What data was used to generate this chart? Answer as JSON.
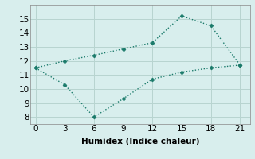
{
  "line1_x": [
    0,
    3,
    6,
    9,
    12,
    15,
    18,
    21
  ],
  "line1_y": [
    11.5,
    12.0,
    12.4,
    12.85,
    13.3,
    15.2,
    14.5,
    11.7
  ],
  "line2_x": [
    0,
    3,
    6,
    9,
    12,
    15,
    18,
    21
  ],
  "line2_y": [
    11.5,
    10.3,
    8.0,
    9.3,
    10.7,
    11.2,
    11.5,
    11.7
  ],
  "line_color": "#1a7a6a",
  "bg_color": "#d8eeed",
  "grid_color": "#b8d4d0",
  "xlabel": "Humidex (Indice chaleur)",
  "xlim": [
    -0.5,
    22
  ],
  "ylim": [
    7.5,
    16
  ],
  "xticks": [
    0,
    3,
    6,
    9,
    12,
    15,
    18,
    21
  ],
  "yticks": [
    8,
    9,
    10,
    11,
    12,
    13,
    14,
    15
  ],
  "markersize": 2.5,
  "linewidth": 1.0,
  "linestyle": "-",
  "xlabel_fontsize": 7.5,
  "tick_fontsize": 7.5
}
